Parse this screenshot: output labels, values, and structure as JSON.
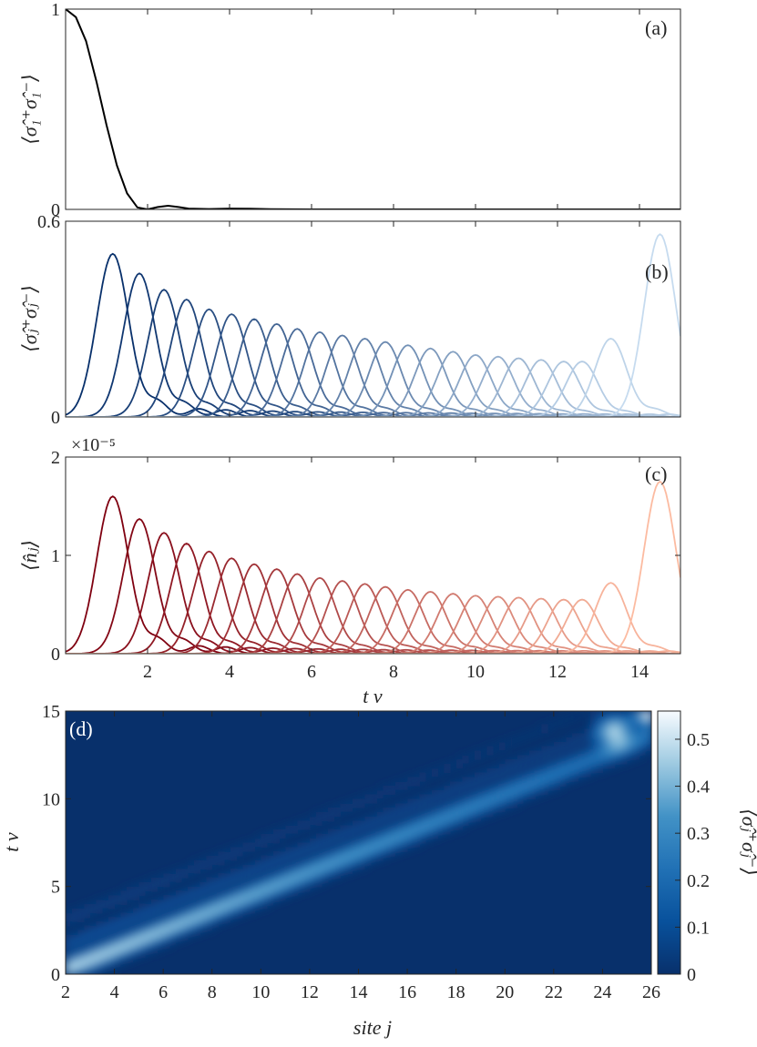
{
  "chart_data": [
    {
      "panel": "(a)",
      "type": "line",
      "ylabel": "⟨σ̂₁⁺σ̂₁⁻⟩",
      "xlim": [
        0,
        15
      ],
      "ylim": [
        0,
        1
      ],
      "xticks": [
        2,
        4,
        6,
        8,
        10,
        12,
        14
      ],
      "yticks": [
        0,
        1
      ],
      "ytick_labels": [
        "0",
        "1"
      ],
      "series": [
        {
          "color": "#000000",
          "x": [
            0,
            0.25,
            0.5,
            0.75,
            1.0,
            1.25,
            1.5,
            1.75,
            2.0,
            2.25,
            2.5,
            2.75,
            3.0,
            3.5,
            4.0,
            4.5,
            5.0,
            6.0,
            8.0,
            10.0,
            12.0,
            15.0
          ],
          "y": [
            1.0,
            0.96,
            0.84,
            0.64,
            0.42,
            0.22,
            0.08,
            0.01,
            0.0,
            0.012,
            0.018,
            0.012,
            0.004,
            0.002,
            0.004,
            0.003,
            0.001,
            0.0,
            0.0,
            0.0,
            0.0,
            0.0
          ]
        }
      ]
    },
    {
      "panel": "(b)",
      "type": "line",
      "ylabel": "⟨σ̂ⱼ⁺σ̂ⱼ⁻⟩",
      "xlim": [
        0,
        15
      ],
      "ylim": [
        0,
        0.6
      ],
      "xticks": [
        2,
        4,
        6,
        8,
        10,
        12,
        14
      ],
      "yticks": [
        0,
        0.6
      ],
      "ytick_labels": [
        "0",
        "0.6"
      ],
      "colormap": "Blues",
      "peaks": {
        "sites": [
          2,
          3,
          4,
          5,
          6,
          7,
          8,
          9,
          10,
          11,
          12,
          13,
          14,
          15,
          16,
          17,
          18,
          19,
          20,
          21,
          22,
          23,
          24,
          25
        ],
        "peak_t": [
          1.15,
          1.8,
          2.4,
          2.95,
          3.5,
          4.05,
          4.6,
          5.15,
          5.65,
          6.2,
          6.75,
          7.3,
          7.8,
          8.35,
          8.9,
          9.45,
          10.0,
          10.55,
          11.05,
          11.6,
          12.15,
          12.6,
          13.3,
          14.5
        ],
        "peak_value": [
          0.5,
          0.44,
          0.39,
          0.36,
          0.33,
          0.315,
          0.3,
          0.285,
          0.27,
          0.26,
          0.25,
          0.24,
          0.23,
          0.22,
          0.21,
          0.2,
          0.19,
          0.185,
          0.18,
          0.175,
          0.17,
          0.17,
          0.24,
          0.56
        ],
        "width": 0.55
      }
    },
    {
      "panel": "(c)",
      "type": "line",
      "ylabel": "⟨n̂ⱼ⟩",
      "y_multiplier": "×10⁻⁵",
      "xlabel": "t v",
      "xlim": [
        0,
        15
      ],
      "ylim": [
        0,
        2
      ],
      "xticks": [
        2,
        4,
        6,
        8,
        10,
        12,
        14
      ],
      "yticks": [
        0,
        1,
        2
      ],
      "ytick_labels": [
        "0",
        "1",
        "2"
      ],
      "colormap": "Reds",
      "peaks": {
        "sites": [
          2,
          3,
          4,
          5,
          6,
          7,
          8,
          9,
          10,
          11,
          12,
          13,
          14,
          15,
          16,
          17,
          18,
          19,
          20,
          21,
          22,
          23,
          24,
          25
        ],
        "peak_t": [
          1.15,
          1.8,
          2.4,
          2.95,
          3.5,
          4.05,
          4.6,
          5.15,
          5.65,
          6.2,
          6.75,
          7.3,
          7.8,
          8.35,
          8.9,
          9.45,
          10.0,
          10.55,
          11.05,
          11.6,
          12.15,
          12.6,
          13.3,
          14.5
        ],
        "peak_value": [
          1.6,
          1.37,
          1.23,
          1.12,
          1.04,
          0.97,
          0.91,
          0.86,
          0.81,
          0.77,
          0.74,
          0.71,
          0.68,
          0.65,
          0.63,
          0.61,
          0.59,
          0.58,
          0.57,
          0.56,
          0.55,
          0.55,
          0.72,
          1.75
        ],
        "width": 0.55
      }
    },
    {
      "panel": "(d)",
      "type": "heatmap",
      "xlabel": "site j",
      "ylabel": "t v",
      "xlim": [
        2,
        26
      ],
      "ylim": [
        0,
        15
      ],
      "xticks": [
        2,
        4,
        6,
        8,
        10,
        12,
        14,
        16,
        18,
        20,
        22,
        24,
        26
      ],
      "yticks": [
        0,
        5,
        10,
        15
      ],
      "colorbar": {
        "label": "⟨σ̂ⱼ⁺σ̂ⱼ⁻⟩",
        "range": [
          0,
          0.56
        ],
        "ticks": [
          0,
          0.1,
          0.2,
          0.3,
          0.4,
          0.5
        ],
        "tick_labels": [
          "0",
          "0.1",
          "0.2",
          "0.3",
          "0.4",
          "0.5"
        ],
        "low_color": "#08306b",
        "high_color": "#f7fbff"
      },
      "front": {
        "site_at_t0": 2,
        "sites_per_unit_t": 1.8,
        "reflection_t": 13.3
      }
    }
  ]
}
